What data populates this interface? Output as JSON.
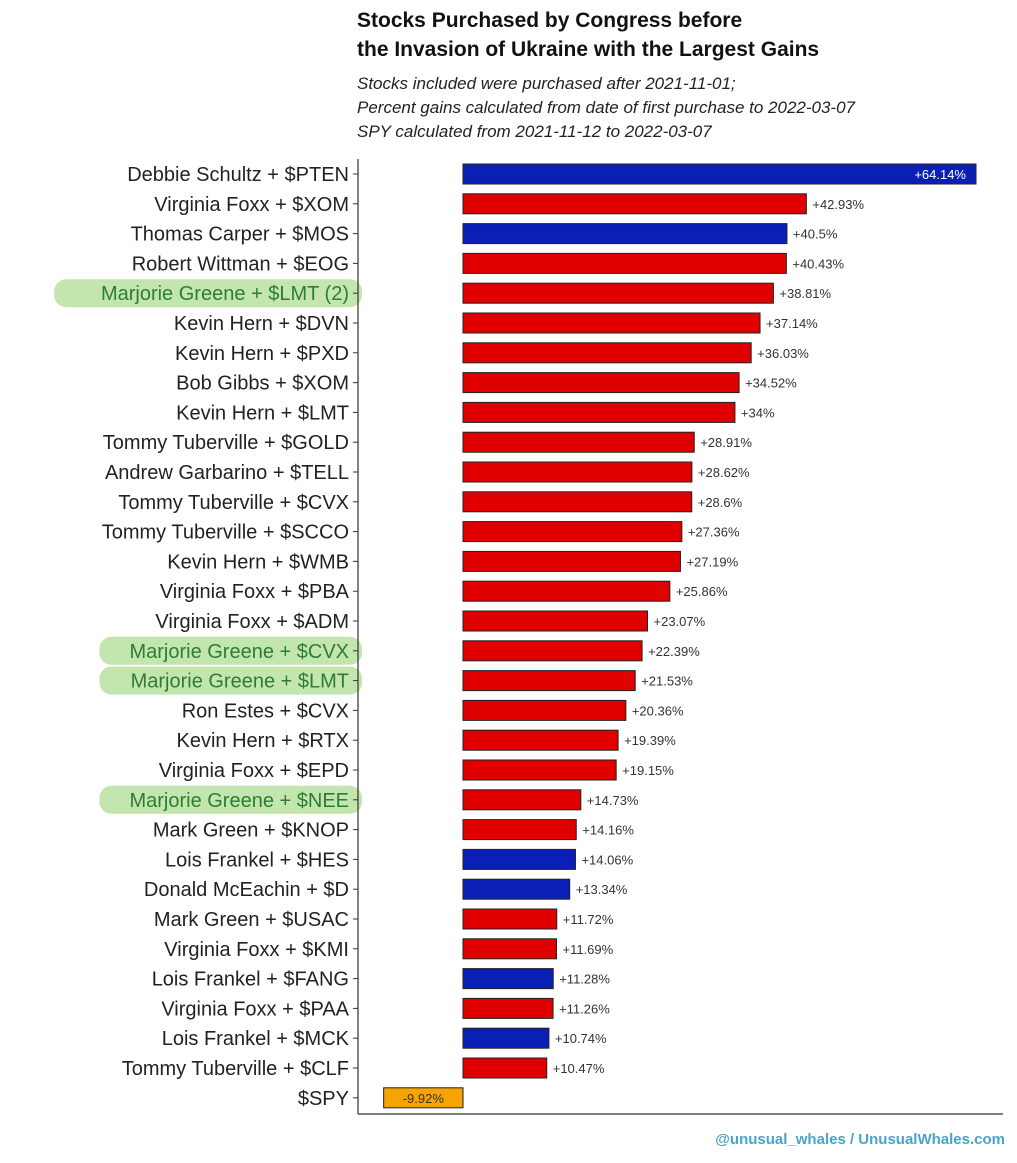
{
  "chart_data": {
    "type": "bar",
    "orientation": "horizontal",
    "title": [
      "Stocks Purchased by Congress before",
      "the Invasion of Ukraine with the Largest Gains"
    ],
    "subtitle": [
      "Stocks included were purchased after 2021-11-01;",
      "Percent gains calculated from date of first purchase to 2022-03-07",
      "SPY calculated from 2021-11-12 to 2022-03-07"
    ],
    "xlabel": "",
    "ylabel": "",
    "xlim": [
      -10.5,
      65
    ],
    "grid": false,
    "legend": "none",
    "colors": {
      "R": "#e00000",
      "D": "#0a1fb5",
      "SPY": "#f5a400",
      "highlight": "#8fd16a"
    },
    "bars": [
      {
        "label": "Debbie Schultz + $PTEN",
        "value": 64.14,
        "text": "+64.14%",
        "party": "D"
      },
      {
        "label": "Virginia Foxx + $XOM",
        "value": 42.93,
        "text": "+42.93%",
        "party": "R"
      },
      {
        "label": "Thomas Carper + $MOS",
        "value": 40.5,
        "text": "+40.5%",
        "party": "D"
      },
      {
        "label": "Robert Wittman + $EOG",
        "value": 40.43,
        "text": "+40.43%",
        "party": "R"
      },
      {
        "label": "Marjorie Greene + $LMT (2)",
        "value": 38.81,
        "text": "+38.81%",
        "party": "R",
        "highlight": true
      },
      {
        "label": "Kevin Hern + $DVN",
        "value": 37.14,
        "text": "+37.14%",
        "party": "R"
      },
      {
        "label": "Kevin Hern + $PXD",
        "value": 36.03,
        "text": "+36.03%",
        "party": "R"
      },
      {
        "label": "Bob Gibbs + $XOM",
        "value": 34.52,
        "text": "+34.52%",
        "party": "R"
      },
      {
        "label": "Kevin Hern + $LMT",
        "value": 34,
        "text": "+34%",
        "party": "R"
      },
      {
        "label": "Tommy Tuberville + $GOLD",
        "value": 28.91,
        "text": "+28.91%",
        "party": "R"
      },
      {
        "label": "Andrew Garbarino + $TELL",
        "value": 28.62,
        "text": "+28.62%",
        "party": "R"
      },
      {
        "label": "Tommy Tuberville + $CVX",
        "value": 28.6,
        "text": "+28.6%",
        "party": "R"
      },
      {
        "label": "Tommy Tuberville + $SCCO",
        "value": 27.36,
        "text": "+27.36%",
        "party": "R"
      },
      {
        "label": "Kevin Hern + $WMB",
        "value": 27.19,
        "text": "+27.19%",
        "party": "R"
      },
      {
        "label": "Virginia Foxx + $PBA",
        "value": 25.86,
        "text": "+25.86%",
        "party": "R"
      },
      {
        "label": "Virginia Foxx + $ADM",
        "value": 23.07,
        "text": "+23.07%",
        "party": "R"
      },
      {
        "label": "Marjorie Greene + $CVX",
        "value": 22.39,
        "text": "+22.39%",
        "party": "R",
        "highlight": true
      },
      {
        "label": "Marjorie Greene + $LMT",
        "value": 21.53,
        "text": "+21.53%",
        "party": "R",
        "highlight": true
      },
      {
        "label": "Ron Estes + $CVX",
        "value": 20.36,
        "text": "+20.36%",
        "party": "R"
      },
      {
        "label": "Kevin Hern + $RTX",
        "value": 19.39,
        "text": "+19.39%",
        "party": "R"
      },
      {
        "label": "Virginia Foxx + $EPD",
        "value": 19.15,
        "text": "+19.15%",
        "party": "R"
      },
      {
        "label": "Marjorie Greene + $NEE",
        "value": 14.73,
        "text": "+14.73%",
        "party": "R",
        "highlight": true
      },
      {
        "label": "Mark Green + $KNOP",
        "value": 14.16,
        "text": "+14.16%",
        "party": "R"
      },
      {
        "label": "Lois Frankel + $HES",
        "value": 14.06,
        "text": "+14.06%",
        "party": "D"
      },
      {
        "label": "Donald McEachin + $D",
        "value": 13.34,
        "text": "+13.34%",
        "party": "D"
      },
      {
        "label": "Mark Green + $USAC",
        "value": 11.72,
        "text": "+11.72%",
        "party": "R"
      },
      {
        "label": "Virginia Foxx + $KMI",
        "value": 11.69,
        "text": "+11.69%",
        "party": "R"
      },
      {
        "label": "Lois Frankel + $FANG",
        "value": 11.28,
        "text": "+11.28%",
        "party": "D"
      },
      {
        "label": "Virginia Foxx + $PAA",
        "value": 11.26,
        "text": "+11.26%",
        "party": "R"
      },
      {
        "label": "Lois Frankel + $MCK",
        "value": 10.74,
        "text": "+10.74%",
        "party": "D"
      },
      {
        "label": "Tommy Tuberville + $CLF",
        "value": 10.47,
        "text": "+10.47%",
        "party": "R"
      },
      {
        "label": "$SPY",
        "value": -9.92,
        "text": "-9.92%",
        "party": "SPY"
      }
    ]
  },
  "footer": {
    "credit": "@unusual_whales / UnusualWhales.com"
  }
}
